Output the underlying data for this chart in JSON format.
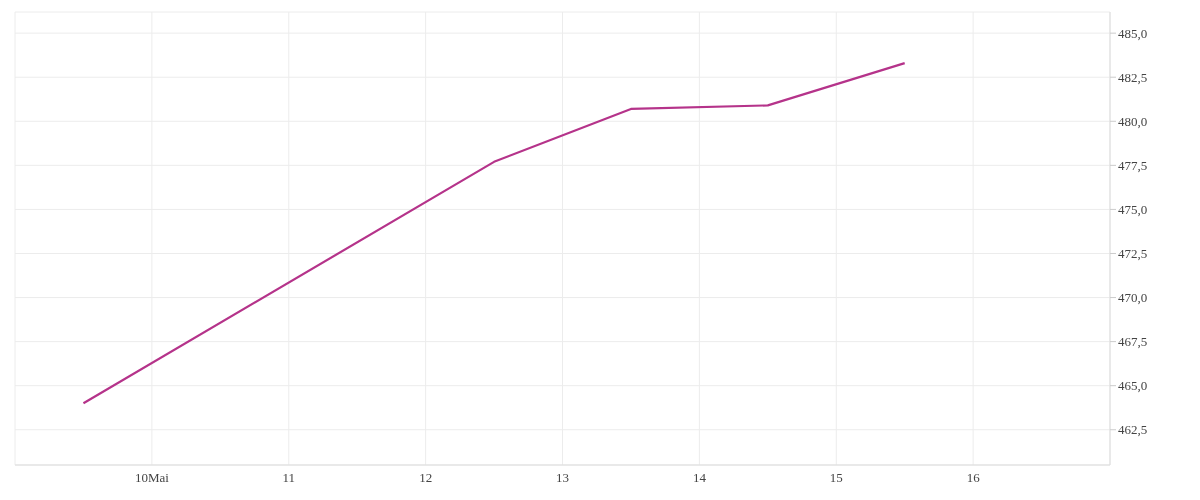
{
  "chart_data": {
    "type": "line",
    "x": [
      9.5,
      12.5,
      13.5,
      14.5,
      15.5
    ],
    "series": [
      {
        "color": "#b5338a",
        "values": [
          464.0,
          477.7,
          480.7,
          480.9,
          483.3
        ]
      }
    ],
    "xlim": [
      9,
      17
    ],
    "xticks": [
      {
        "value": 10,
        "label": "10Mai"
      },
      11,
      12,
      13,
      14,
      15,
      16
    ],
    "ylim": [
      460.5,
      486.2
    ],
    "yticks": [
      {
        "value": 462.5,
        "label": "462,5"
      },
      {
        "value": 465,
        "label": "465,0"
      },
      {
        "value": 467.5,
        "label": "467,5"
      },
      {
        "value": 470,
        "label": "470,0"
      },
      {
        "value": 472.5,
        "label": "472,5"
      },
      {
        "value": 475,
        "label": "475,0"
      },
      {
        "value": 477.5,
        "label": "477,5"
      },
      {
        "value": 480,
        "label": "480,0"
      },
      {
        "value": 482.5,
        "label": "482,5"
      },
      {
        "value": 485,
        "label": "485,0"
      }
    ],
    "grid": true,
    "legend": false,
    "marker": "none",
    "line_style": "solid"
  }
}
